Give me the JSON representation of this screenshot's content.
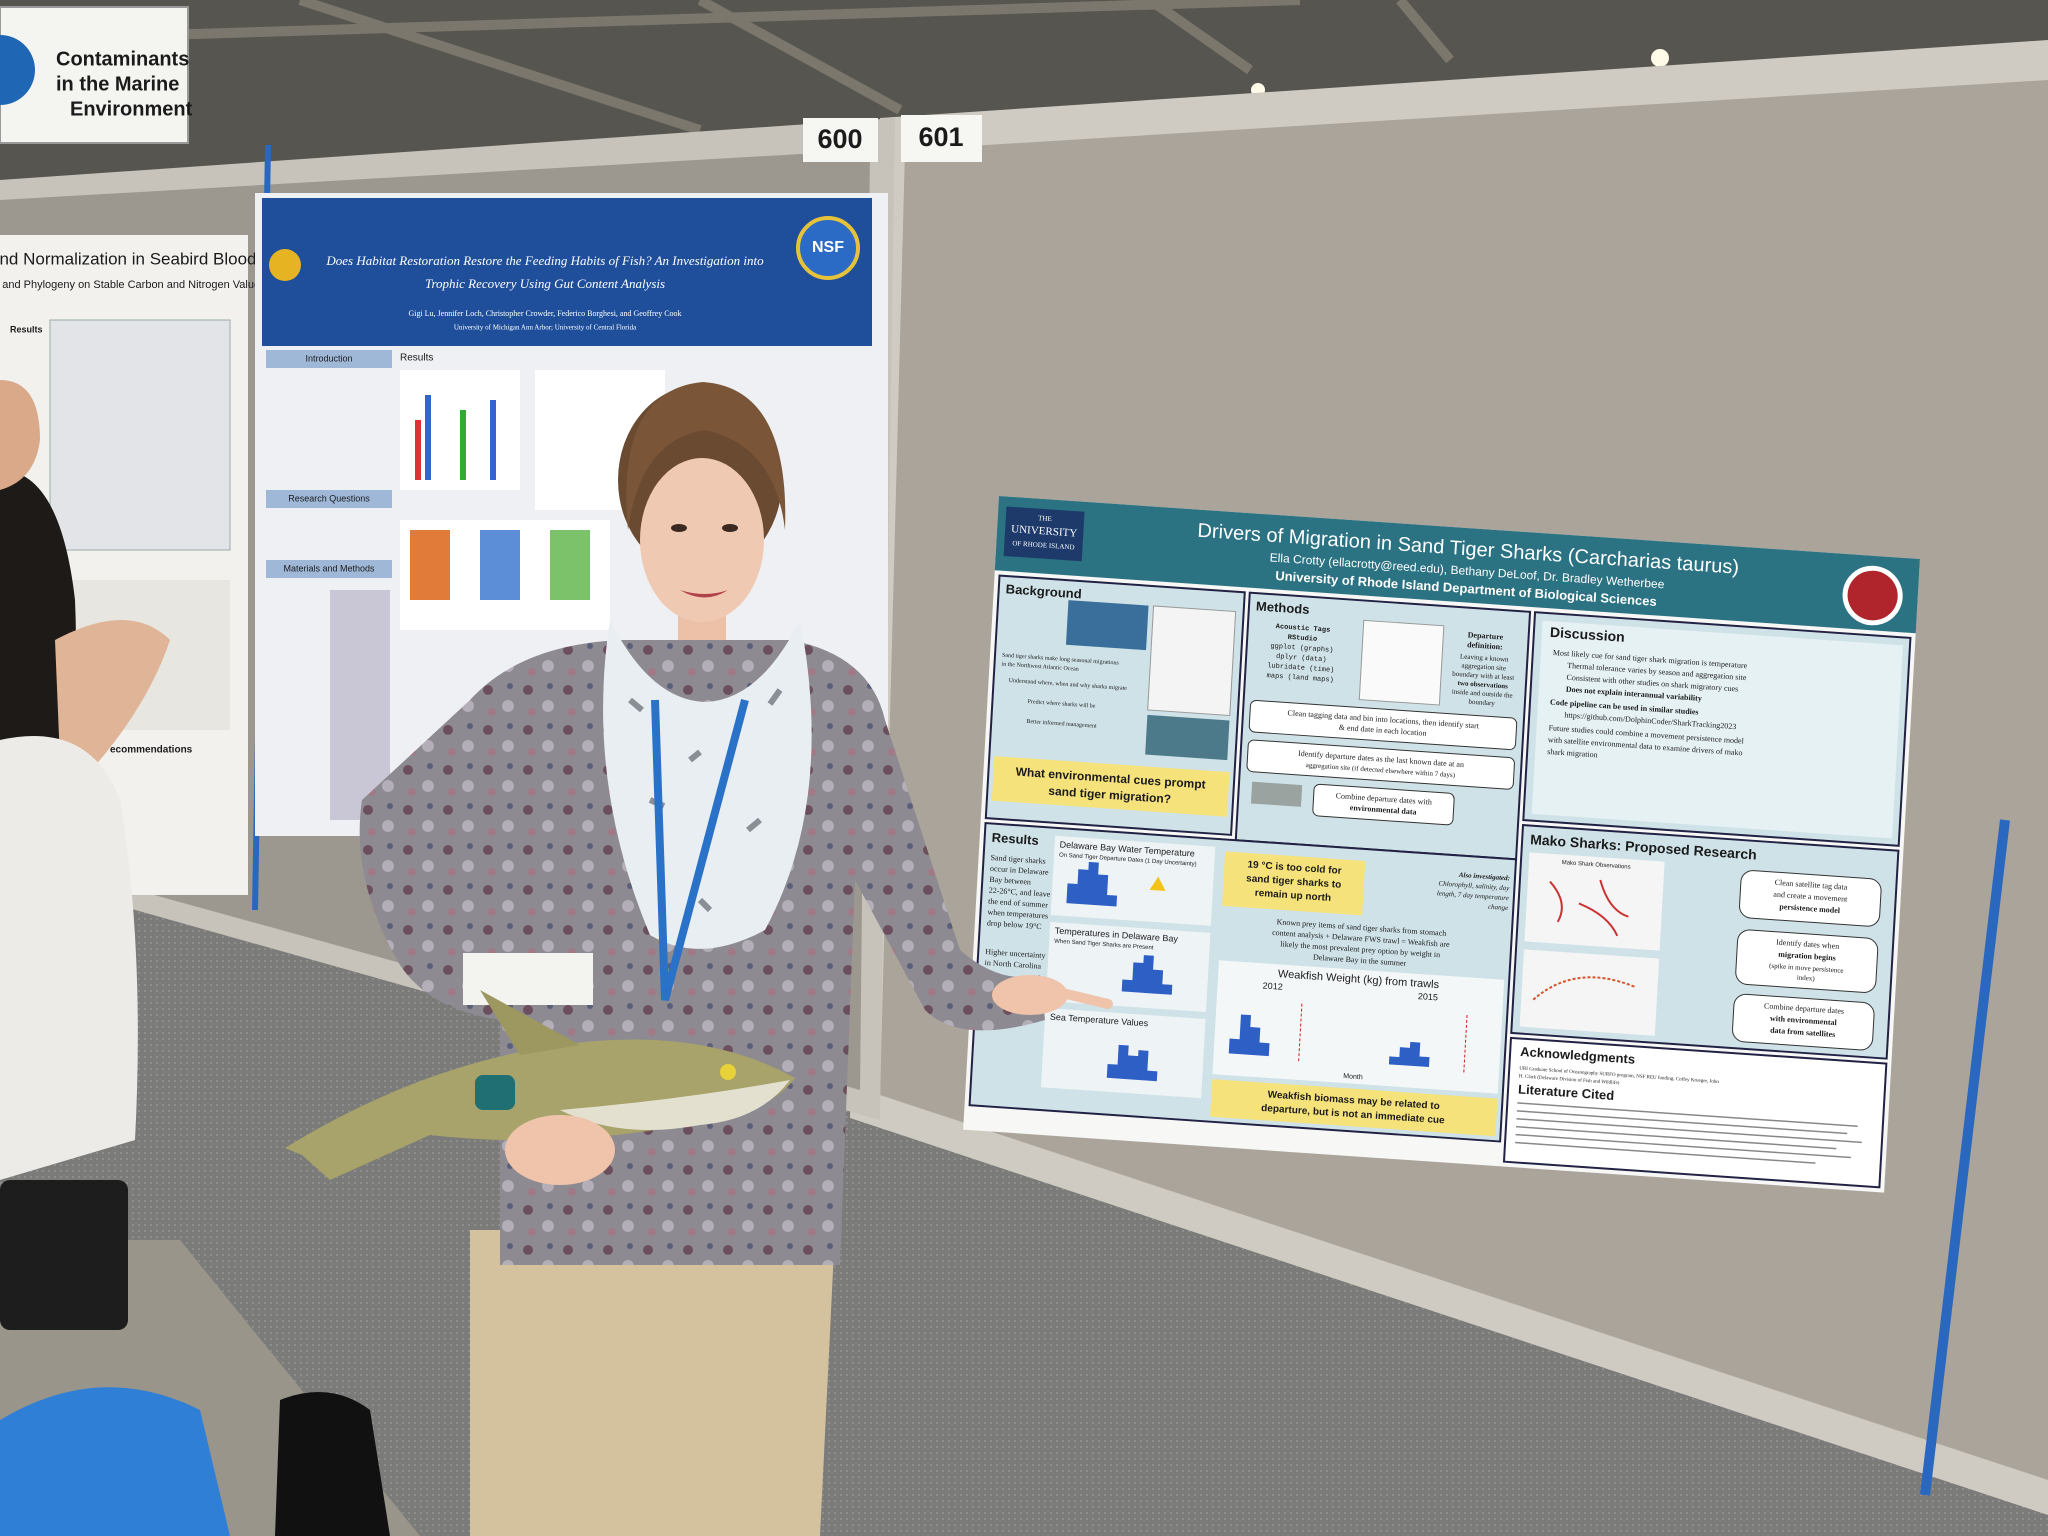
{
  "sign": {
    "lines": [
      "Contaminants",
      "in the Marine",
      "Environment"
    ]
  },
  "booths": [
    "600",
    "601"
  ],
  "left_poster": {
    "title": "and Normalization in Seabird Blood Plasma:",
    "subtitle": "e, and Phylogeny on Stable Carbon and Nitrogen Values",
    "sections": [
      "Results",
      "ecommendations"
    ]
  },
  "middle_poster": {
    "title": [
      "Does Habitat Restoration Restore the Feeding Habits of Fish? An Investigation into",
      "Trophic Recovery Using Gut Content Analysis"
    ],
    "authors": "Gigi Lu, Jennifer Loch, Christopher Crowder, Federico Borghesi, and Geoffrey Cook",
    "affiliation": "University of Michigan Ann Arbor; University of Central Florida",
    "logo": "NSF",
    "sections": [
      "Introduction",
      "Results",
      "Research Questions",
      "Materials and Methods"
    ]
  },
  "main_poster": {
    "university": [
      "THE",
      "UNIVERSITY",
      "OF RHODE ISLAND"
    ],
    "title": "Drivers of Migration in Sand Tiger Sharks (Carcharias taurus)",
    "authors": "Ella Crotty (ellacrotty@reed.edu), Bethany DeLoof, Dr. Bradley Wetherbee",
    "affiliation": "University of Rhode Island Department of Biological Sciences",
    "background": {
      "heading": "Background",
      "bullets": [
        "Sand tiger sharks make long seasonal migrations",
        "in the Northwest Atlantic Ocean",
        "Understand where, when and why sharks migrate",
        "Predict where sharks will be",
        "Better informed management"
      ],
      "question": [
        "What environmental cues prompt",
        "sand tiger migration?"
      ]
    },
    "methods": {
      "heading": "Methods",
      "tools": [
        "Acoustic Tags",
        "RStudio",
        "ggplot (graphs)",
        "dplyr (data)",
        "lubridate (time)",
        "maps (land maps)"
      ],
      "departure": [
        "Departure",
        "definition:",
        "Leaving a known",
        "aggregation site",
        "boundary with at least",
        "two observations",
        "inside and outside the",
        "boundary"
      ],
      "steps": [
        [
          "Clean tagging data and bin into locations, then identify start",
          "& end date in each location"
        ],
        [
          "Identify departure dates as the last known date at an",
          "aggregation site (if detected elsewhere within 7 days)"
        ],
        [
          "Combine departure dates with",
          "environmental data"
        ]
      ]
    },
    "discussion": {
      "heading": "Discussion",
      "bullets": [
        "Most likely cue for sand tiger shark migration is temperature",
        "Thermal tolerance varies by season and aggregation site",
        "Consistent with other studies on shark migratory cues",
        "Does not explain interannual variability",
        "Code pipeline can be used in similar studies",
        "https://github.com/DolphinCoder/SharkTracking2023",
        "Future studies could combine a movement persistence model",
        "with satellite environmental data to examine drivers of mako",
        "shark migration"
      ]
    },
    "results": {
      "heading": "Results",
      "summary": [
        "Sand tiger sharks",
        "occur in Delaware",
        "Bay between",
        "22-26°C, and leave at",
        "the end of summer",
        "when temperatures",
        "drop below 19°C"
      ],
      "uncertainty": [
        "Higher uncertainty",
        "in North Carolina"
      ],
      "charts": [
        [
          "Delaware Bay Water Temperature",
          "On Sand Tiger Departure Dates (1 Day Uncertainty)"
        ],
        [
          "Temperatures in Delaware Bay",
          "When Sand Tiger Sharks are Present"
        ],
        [
          "Sea Temperature Values",
          ""
        ]
      ],
      "callout": [
        "19 °C is too cold for",
        "sand tiger sharks to",
        "remain up north"
      ],
      "also": [
        "Also investigated:",
        "Chlorophyll, salinity, day",
        "length, 7 day temperature",
        "change"
      ],
      "prey": [
        "Known prey items of sand tiger sharks from stomach",
        "content analysis + Delaware FWS trawl = Weakfish are",
        "likely the most prevalent prey option by weight in",
        "Delaware Bay in the summer"
      ],
      "weakfish": {
        "title": "Weakfish Weight (kg) from trawls",
        "years": [
          "2012",
          "2015"
        ],
        "xlabel": "Month"
      },
      "conclusion": [
        "Weakfish biomass may be related to",
        "departure, but is not an immediate cue"
      ]
    },
    "mako": {
      "heading": "Mako Sharks: Proposed Research",
      "map_title": "Mako Shark Observations",
      "steps": [
        [
          "Clean satellite tag data",
          "and create a movement",
          "persistence model"
        ],
        [
          "Identify dates when",
          "migration begins",
          "(spike in move persistence",
          "index)"
        ],
        [
          "Combine departure dates",
          "with environmental",
          "data from satellites"
        ]
      ]
    },
    "acknowledgments": {
      "heading": "Acknowledgments",
      "text": [
        "URI Graduate School of Oceanography SURFO program, NSF REU funding, Coffey Krueger, John",
        "H. Clark (Delaware Division of Fish and Wildlife)"
      ]
    },
    "literature": {
      "heading": "Literature Cited"
    }
  }
}
